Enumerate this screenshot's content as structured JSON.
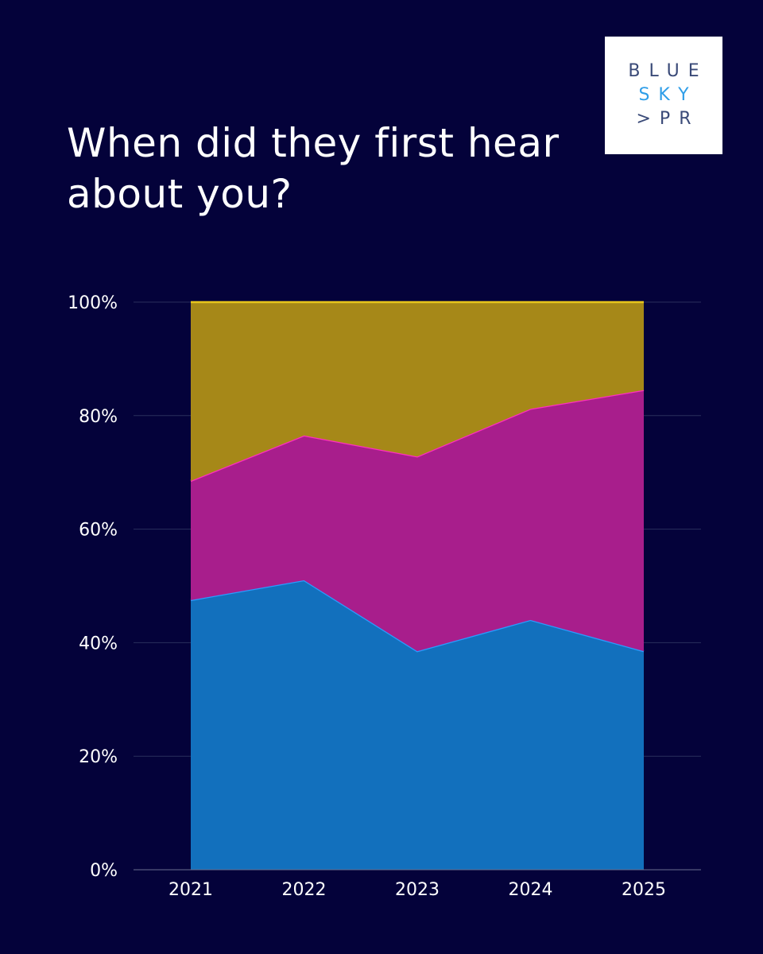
{
  "header": {
    "title": "When did they first hear about you?",
    "logo": {
      "line1": "BLUE",
      "line2": "SKY",
      "line3": ">PR"
    }
  },
  "colors": {
    "background": "#04023a",
    "series_fills": [
      "#1270bd",
      "#a81e8c",
      "#a68818"
    ],
    "series_lines": [
      "#2a9dff",
      "#ff2fc0",
      "#e8c51c"
    ],
    "grid": "#2a2f5c"
  },
  "chart_data": {
    "type": "area",
    "stacked": true,
    "x": [
      "2021",
      "2022",
      "2023",
      "2024",
      "2025"
    ],
    "ylim": [
      0,
      100
    ],
    "yticks": [
      "0%",
      "20%",
      "40%",
      "60%",
      "80%",
      "100%"
    ],
    "grid": true,
    "legend": "none",
    "series": [
      {
        "name": "bottom",
        "values": [
          47.5,
          51,
          38.5,
          44,
          38.5
        ]
      },
      {
        "name": "middle",
        "values": [
          21,
          25.5,
          34.3,
          37.2,
          46
        ]
      },
      {
        "name": "top",
        "values": [
          31.5,
          23.5,
          27.2,
          18.8,
          15.5
        ]
      }
    ]
  }
}
